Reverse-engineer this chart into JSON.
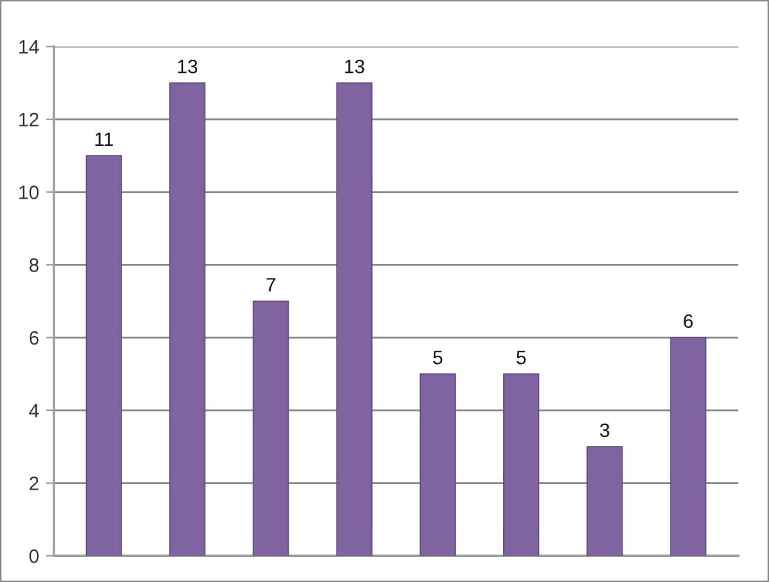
{
  "chart_data": {
    "type": "bar",
    "categories": [
      null,
      null,
      null,
      null,
      null,
      null,
      null,
      null
    ],
    "values": [
      11,
      13,
      7,
      13,
      5,
      5,
      3,
      6
    ],
    "color": "#8064a2",
    "ylim": [
      0,
      14
    ],
    "yticks": [
      0,
      2,
      4,
      6,
      8,
      10,
      12,
      14
    ],
    "grid": "y",
    "data_labels": true
  }
}
